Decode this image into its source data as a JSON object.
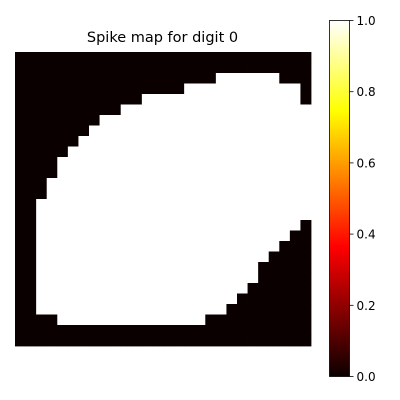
{
  "chart_data": {
    "type": "heatmap",
    "title": "Spike map for digit 0",
    "colormap": "hot",
    "grid": false,
    "axes_visible": false,
    "colorbar": {
      "position": "right",
      "range": [
        0.0,
        1.0
      ],
      "ticks": [
        0.0,
        0.2,
        0.4,
        0.6,
        0.8,
        1.0
      ],
      "tick_labels": [
        "0.0",
        "0.2",
        "0.4",
        "0.6",
        "0.8",
        "1.0"
      ]
    },
    "rows": 28,
    "cols": 28,
    "matrix": [
      [
        0,
        0,
        0,
        0,
        0,
        0,
        0,
        0,
        0,
        0,
        0,
        0,
        0,
        0,
        0,
        0,
        0,
        0,
        0,
        0,
        0,
        0,
        0,
        0,
        0,
        0,
        0,
        0
      ],
      [
        0,
        0,
        0,
        0,
        0,
        0,
        0,
        0,
        0,
        0,
        0,
        0,
        0,
        0,
        0,
        0,
        0,
        0,
        0,
        0,
        0,
        0,
        0,
        0,
        0,
        0,
        0,
        0
      ],
      [
        0,
        0,
        0,
        0,
        0,
        0,
        0,
        0,
        0,
        0,
        0,
        0,
        0,
        0,
        0,
        0,
        0,
        0,
        0,
        1,
        1,
        1,
        1,
        1,
        1,
        0,
        0,
        0
      ],
      [
        0,
        0,
        0,
        0,
        0,
        0,
        0,
        0,
        0,
        0,
        0,
        0,
        0,
        0,
        0,
        0,
        1,
        1,
        1,
        1,
        1,
        1,
        1,
        1,
        1,
        1,
        1,
        0
      ],
      [
        0,
        0,
        0,
        0,
        0,
        0,
        0,
        0,
        0,
        0,
        0,
        0,
        1,
        1,
        1,
        1,
        1,
        1,
        1,
        1,
        1,
        1,
        1,
        1,
        1,
        1,
        1,
        0
      ],
      [
        0,
        0,
        0,
        0,
        0,
        0,
        0,
        0,
        0,
        0,
        1,
        1,
        1,
        1,
        1,
        1,
        1,
        1,
        1,
        1,
        1,
        1,
        1,
        1,
        1,
        1,
        1,
        1
      ],
      [
        0,
        0,
        0,
        0,
        0,
        0,
        0,
        0,
        1,
        1,
        1,
        1,
        1,
        1,
        1,
        1,
        1,
        1,
        1,
        1,
        1,
        1,
        1,
        1,
        1,
        1,
        1,
        1
      ],
      [
        0,
        0,
        0,
        0,
        0,
        0,
        0,
        1,
        1,
        1,
        1,
        1,
        1,
        1,
        1,
        1,
        1,
        1,
        1,
        1,
        1,
        1,
        1,
        1,
        1,
        1,
        1,
        1
      ],
      [
        0,
        0,
        0,
        0,
        0,
        0,
        1,
        1,
        1,
        1,
        1,
        1,
        1,
        1,
        1,
        1,
        1,
        1,
        1,
        1,
        1,
        1,
        1,
        1,
        1,
        1,
        1,
        1
      ],
      [
        0,
        0,
        0,
        0,
        0,
        1,
        1,
        1,
        1,
        1,
        1,
        1,
        1,
        1,
        1,
        1,
        1,
        1,
        1,
        1,
        1,
        1,
        1,
        1,
        1,
        1,
        1,
        1
      ],
      [
        0,
        0,
        0,
        0,
        1,
        1,
        1,
        1,
        1,
        1,
        1,
        1,
        1,
        1,
        1,
        1,
        1,
        1,
        1,
        1,
        1,
        1,
        1,
        1,
        1,
        1,
        1,
        1
      ],
      [
        0,
        0,
        0,
        0,
        1,
        1,
        1,
        1,
        1,
        1,
        1,
        1,
        1,
        1,
        1,
        1,
        1,
        1,
        1,
        1,
        1,
        1,
        1,
        1,
        1,
        1,
        1,
        1
      ],
      [
        0,
        0,
        0,
        1,
        1,
        1,
        1,
        1,
        1,
        1,
        1,
        1,
        1,
        1,
        1,
        1,
        1,
        1,
        1,
        1,
        1,
        1,
        1,
        1,
        1,
        1,
        1,
        1
      ],
      [
        0,
        0,
        0,
        1,
        1,
        1,
        1,
        1,
        1,
        1,
        1,
        1,
        1,
        1,
        1,
        1,
        1,
        1,
        1,
        1,
        1,
        1,
        1,
        1,
        1,
        1,
        1,
        1
      ],
      [
        0,
        0,
        1,
        1,
        1,
        1,
        1,
        1,
        1,
        1,
        1,
        1,
        1,
        1,
        1,
        1,
        1,
        1,
        1,
        1,
        1,
        1,
        1,
        1,
        1,
        1,
        1,
        1
      ],
      [
        0,
        0,
        1,
        1,
        1,
        1,
        1,
        1,
        1,
        1,
        1,
        1,
        1,
        1,
        1,
        1,
        1,
        1,
        1,
        1,
        1,
        1,
        1,
        1,
        1,
        1,
        1,
        1
      ],
      [
        0,
        0,
        1,
        1,
        1,
        1,
        1,
        1,
        1,
        1,
        1,
        1,
        1,
        1,
        1,
        1,
        1,
        1,
        1,
        1,
        1,
        1,
        1,
        1,
        1,
        1,
        1,
        0
      ],
      [
        0,
        0,
        1,
        1,
        1,
        1,
        1,
        1,
        1,
        1,
        1,
        1,
        1,
        1,
        1,
        1,
        1,
        1,
        1,
        1,
        1,
        1,
        1,
        1,
        1,
        1,
        0,
        0
      ],
      [
        0,
        0,
        1,
        1,
        1,
        1,
        1,
        1,
        1,
        1,
        1,
        1,
        1,
        1,
        1,
        1,
        1,
        1,
        1,
        1,
        1,
        1,
        1,
        1,
        1,
        0,
        0,
        0
      ],
      [
        0,
        0,
        1,
        1,
        1,
        1,
        1,
        1,
        1,
        1,
        1,
        1,
        1,
        1,
        1,
        1,
        1,
        1,
        1,
        1,
        1,
        1,
        1,
        1,
        0,
        0,
        0,
        0
      ],
      [
        0,
        0,
        1,
        1,
        1,
        1,
        1,
        1,
        1,
        1,
        1,
        1,
        1,
        1,
        1,
        1,
        1,
        1,
        1,
        1,
        1,
        1,
        1,
        0,
        0,
        0,
        0,
        0
      ],
      [
        0,
        0,
        1,
        1,
        1,
        1,
        1,
        1,
        1,
        1,
        1,
        1,
        1,
        1,
        1,
        1,
        1,
        1,
        1,
        1,
        1,
        1,
        1,
        0,
        0,
        0,
        0,
        0
      ],
      [
        0,
        0,
        1,
        1,
        1,
        1,
        1,
        1,
        1,
        1,
        1,
        1,
        1,
        1,
        1,
        1,
        1,
        1,
        1,
        1,
        1,
        1,
        0,
        0,
        0,
        0,
        0,
        0
      ],
      [
        0,
        0,
        1,
        1,
        1,
        1,
        1,
        1,
        1,
        1,
        1,
        1,
        1,
        1,
        1,
        1,
        1,
        1,
        1,
        1,
        1,
        0,
        0,
        0,
        0,
        0,
        0,
        0
      ],
      [
        0,
        0,
        1,
        1,
        1,
        1,
        1,
        1,
        1,
        1,
        1,
        1,
        1,
        1,
        1,
        1,
        1,
        1,
        1,
        1,
        0,
        0,
        0,
        0,
        0,
        0,
        0,
        0
      ],
      [
        0,
        0,
        0,
        0,
        1,
        1,
        1,
        1,
        1,
        1,
        1,
        1,
        1,
        1,
        1,
        1,
        1,
        1,
        0,
        0,
        0,
        0,
        0,
        0,
        0,
        0,
        0,
        0
      ],
      [
        0,
        0,
        0,
        0,
        0,
        0,
        0,
        0,
        0,
        0,
        0,
        0,
        0,
        0,
        0,
        0,
        0,
        0,
        0,
        0,
        0,
        0,
        0,
        0,
        0,
        0,
        0,
        0
      ],
      [
        0,
        0,
        0,
        0,
        0,
        0,
        0,
        0,
        0,
        0,
        0,
        0,
        0,
        0,
        0,
        0,
        0,
        0,
        0,
        0,
        0,
        0,
        0,
        0,
        0,
        0,
        0,
        0
      ]
    ]
  }
}
